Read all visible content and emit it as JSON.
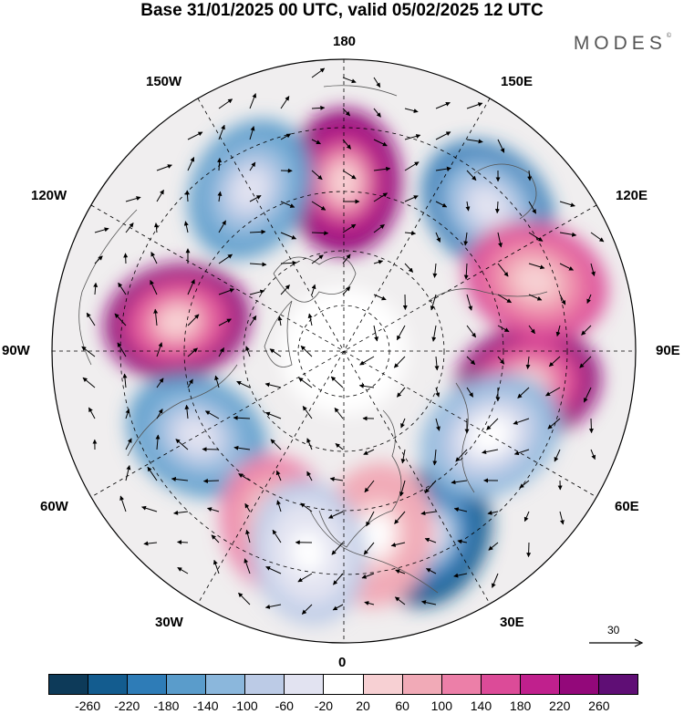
{
  "header": {
    "title": "Base 31/01/2025 00 UTC, valid 05/02/2025 12 UTC",
    "brand": "MODES",
    "brand_mark": "©"
  },
  "map": {
    "projection": "north-polar-stereographic",
    "longitude_labels": [
      {
        "key": "180",
        "text": "180"
      },
      {
        "key": "150W",
        "text": "150W"
      },
      {
        "key": "150E",
        "text": "150E"
      },
      {
        "key": "120W",
        "text": "120W"
      },
      {
        "key": "120E",
        "text": "120E"
      },
      {
        "key": "90W",
        "text": "90W"
      },
      {
        "key": "90E",
        "text": "90E"
      },
      {
        "key": "60W",
        "text": "60W"
      },
      {
        "key": "60E",
        "text": "60E"
      },
      {
        "key": "30W",
        "text": "30W"
      },
      {
        "key": "30E",
        "text": "30E"
      },
      {
        "key": "0",
        "text": "0"
      }
    ],
    "anomaly_centers": [
      {
        "sign": "positive",
        "longitude": "180",
        "strength": 250
      },
      {
        "sign": "negative",
        "longitude": "150W",
        "strength": -160
      },
      {
        "sign": "negative",
        "longitude": "135E",
        "strength": -190
      },
      {
        "sign": "positive",
        "longitude": "100W",
        "strength": 230
      },
      {
        "sign": "positive",
        "longitude": "80E",
        "strength": 240
      },
      {
        "sign": "positive",
        "longitude": "110E",
        "strength": 170
      },
      {
        "sign": "negative",
        "longitude": "60W",
        "strength": -170
      },
      {
        "sign": "positive",
        "longitude": "20W",
        "strength": 130
      },
      {
        "sign": "negative",
        "longitude": "25E",
        "strength": -250
      },
      {
        "sign": "negative",
        "longitude": "60E",
        "strength": -130
      },
      {
        "sign": "positive",
        "longitude": "10E",
        "strength": 90
      },
      {
        "sign": "negative",
        "longitude": "10W",
        "strength": -80
      }
    ],
    "wind_reference": {
      "value": "30"
    }
  },
  "colorbar": {
    "ticks": [
      "-260",
      "-220",
      "-180",
      "-140",
      "-100",
      "-60",
      "-20",
      "20",
      "60",
      "100",
      "140",
      "180",
      "220",
      "260"
    ],
    "colors": [
      "#0d3a59",
      "#135c8f",
      "#2e7cb7",
      "#5a9ccb",
      "#8bb7dc",
      "#bccbe6",
      "#e2e3f1",
      "#ffffff",
      "#f7d0d3",
      "#f1aab7",
      "#ec7fa8",
      "#dc4b98",
      "#c0208d",
      "#93087a",
      "#5f0e75"
    ]
  }
}
